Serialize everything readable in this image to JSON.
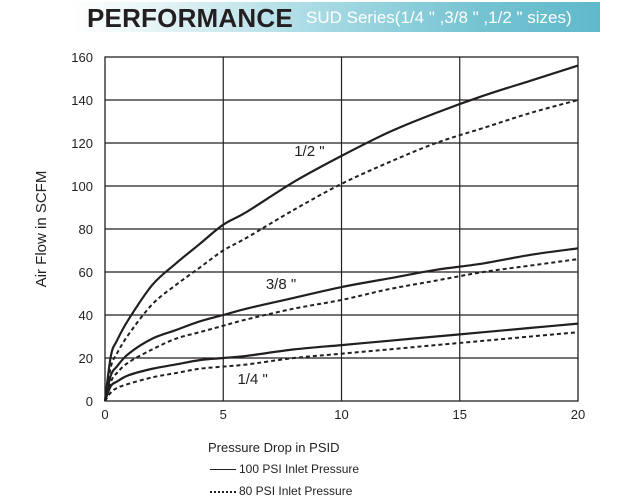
{
  "header": {
    "title": "PERFORMANCE",
    "subtitle": "SUD  Series(1/4  \" ,3/8  \" ,1/2  \" sizes)"
  },
  "colors": {
    "banner_start": "#ffffff",
    "banner_end": "#5fb9ca",
    "ink": "#231f20"
  },
  "legend": {
    "solid_label": "100 PSI Inlet Pressure",
    "dotted_label": "80 PSI Inlet Pressure"
  },
  "chart_data": {
    "type": "line",
    "xlabel": "Pressure Drop in PSID",
    "ylabel": "Air Flow in SCFM",
    "xlim": [
      0,
      20
    ],
    "ylim": [
      0,
      160
    ],
    "xticks": [
      0,
      5,
      10,
      15,
      20
    ],
    "yticks": [
      0,
      20,
      40,
      60,
      80,
      100,
      120,
      140,
      160
    ],
    "grid": true,
    "legend_position": "bottom-left",
    "x": [
      0,
      0.25,
      0.5,
      1,
      2,
      3,
      4,
      5,
      6,
      8,
      10,
      12,
      14,
      16,
      18,
      20
    ],
    "series": [
      {
        "size": "1/2 \"",
        "inlet": "100 PSI Inlet Pressure",
        "style": "solid",
        "values": [
          0,
          21,
          28,
          38,
          54,
          64,
          73,
          82,
          88,
          102,
          114,
          125,
          134,
          142,
          149,
          156
        ]
      },
      {
        "size": "1/2 \"",
        "inlet": "80 PSI Inlet Pressure",
        "style": "dotted",
        "values": [
          0,
          16,
          22,
          31,
          45,
          54,
          62,
          70,
          76,
          89,
          101,
          111,
          120,
          127,
          134,
          140
        ]
      },
      {
        "size": "3/8 \"",
        "inlet": "100 PSI Inlet Pressure",
        "style": "solid",
        "values": [
          0,
          12,
          16,
          22,
          29,
          33,
          37,
          40,
          43,
          48,
          53,
          57,
          61,
          64,
          68,
          71
        ]
      },
      {
        "size": "3/8 \"",
        "inlet": "80 PSI Inlet Pressure",
        "style": "dotted",
        "values": [
          0,
          9,
          13,
          18,
          24,
          29,
          32,
          35,
          38,
          43,
          47,
          52,
          56,
          60,
          63,
          66
        ]
      },
      {
        "size": "1/4 \"",
        "inlet": "100 PSI Inlet Pressure",
        "style": "solid",
        "values": [
          0,
          7,
          9,
          12,
          15,
          17,
          19,
          20,
          21,
          24,
          26,
          28,
          30,
          32,
          34,
          36
        ]
      },
      {
        "size": "1/4 \"",
        "inlet": "80 PSI Inlet Pressure",
        "style": "dotted",
        "values": [
          0,
          4,
          6,
          8,
          11,
          13,
          15,
          16,
          17,
          20,
          22,
          24,
          26,
          28,
          30,
          32
        ]
      }
    ],
    "annotations": [
      {
        "text": "1/2  \"",
        "x": 8.0,
        "y": 114
      },
      {
        "text": "3/8  \"",
        "x": 6.8,
        "y": 52
      },
      {
        "text": "1/4  \"",
        "x": 5.6,
        "y": 8
      }
    ]
  }
}
